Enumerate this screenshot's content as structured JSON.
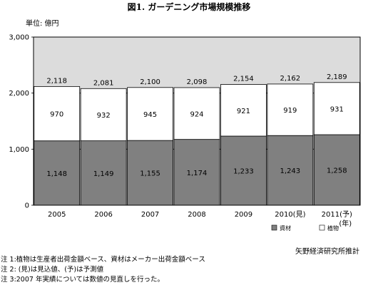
{
  "title": "図1. ガーデニング市場規模推移",
  "unit_label": "単位: 億円",
  "source": "矢野経済研究所推計",
  "notes": [
    "注 1:植物は生産者出荷金額ベース、資材はメーカー出荷金額ベース",
    "注 2: (見)は見込値、(予)は予測値",
    "注 3:2007 年実績については数値の見直しを行った。"
  ],
  "colors": {
    "materials": "#808080",
    "plants": "#ffffff",
    "plot_bg": "#dcdcdc",
    "border": "#000000"
  },
  "chart_data": {
    "type": "bar",
    "stacked": true,
    "categories": [
      "2005",
      "2006",
      "2007",
      "2008",
      "2009",
      "2010(見)",
      "2011(予)"
    ],
    "x_unit_label": "(年)",
    "series": [
      {
        "name": "資材",
        "values": [
          1148,
          1149,
          1155,
          1174,
          1233,
          1243,
          1258
        ],
        "labels": [
          "1,148",
          "1,149",
          "1,155",
          "1,174",
          "1,233",
          "1,243",
          "1,258"
        ]
      },
      {
        "name": "植物",
        "values": [
          970,
          932,
          945,
          924,
          921,
          919,
          931
        ],
        "labels": [
          "970",
          "932",
          "945",
          "924",
          "921",
          "919",
          "931"
        ]
      }
    ],
    "totals": [
      2118,
      2081,
      2100,
      2098,
      2154,
      2162,
      2189
    ],
    "total_labels": [
      "2,118",
      "2,081",
      "2,100",
      "2,098",
      "2,154",
      "2,162",
      "2,189"
    ],
    "ylim": [
      0,
      3000
    ],
    "yticks": [
      0,
      1000,
      2000,
      3000
    ],
    "ytick_labels": [
      "0",
      "1,000",
      "2,000",
      "3,000"
    ],
    "grid": true,
    "legend_position": "bottom-right"
  }
}
